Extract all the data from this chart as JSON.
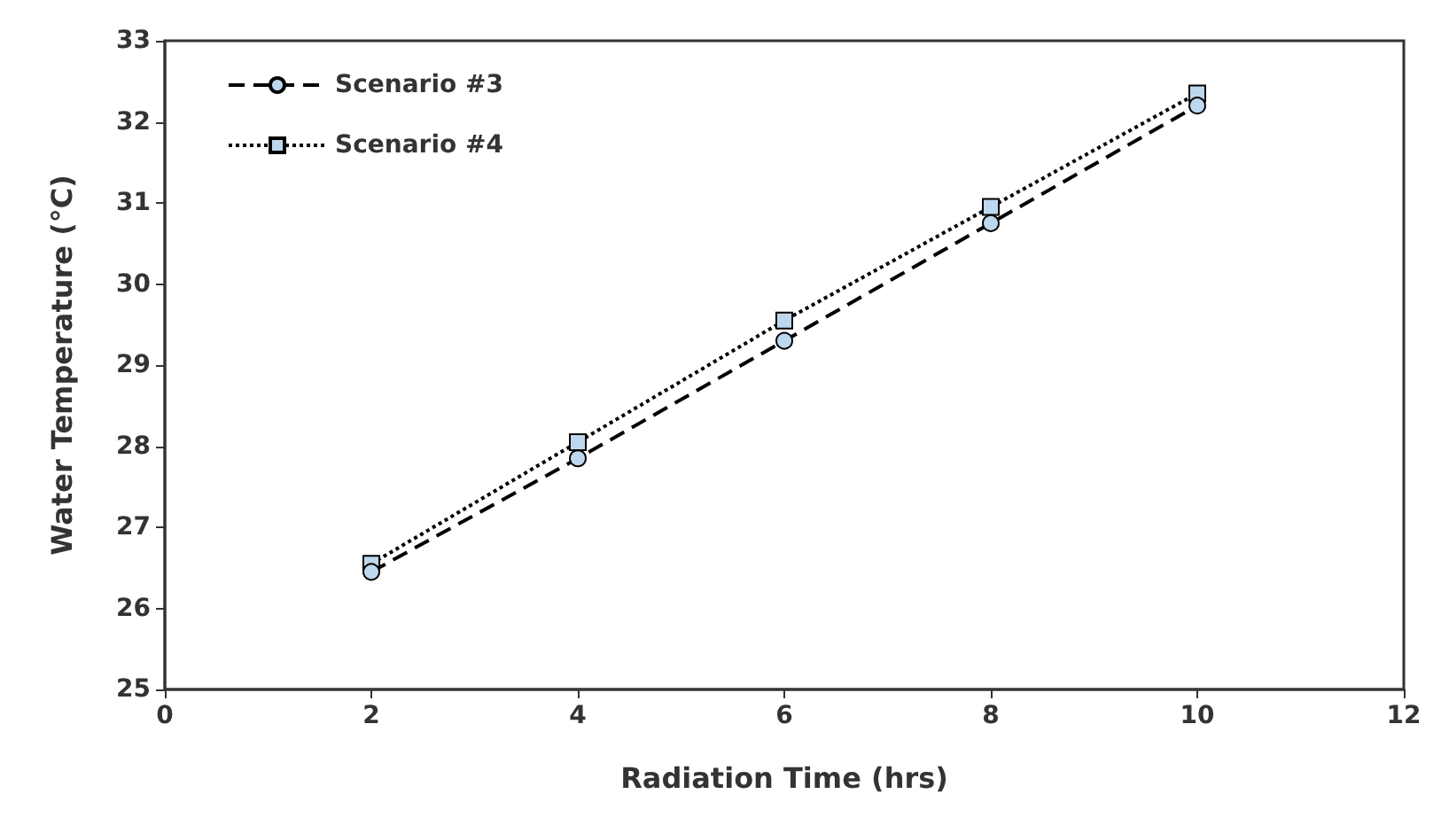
{
  "chart_data": {
    "type": "line",
    "xlabel": "Radiation Time (hrs)",
    "ylabel": "Water Temperature (°C)",
    "x": [
      2,
      4,
      6,
      8,
      10
    ],
    "series": [
      {
        "name": "Scenario #3",
        "color": "#000000",
        "marker": "circle",
        "line_style": "dashed",
        "values": [
          26.45,
          27.85,
          29.3,
          30.75,
          32.2
        ]
      },
      {
        "name": "Scenario #4",
        "color": "#000000",
        "marker": "square",
        "line_style": "dotted",
        "values": [
          26.55,
          28.05,
          29.55,
          30.95,
          32.35
        ]
      }
    ],
    "xlim": [
      0,
      12
    ],
    "xticks": [
      0,
      2,
      4,
      6,
      8,
      10,
      12
    ],
    "ylim": [
      25,
      33
    ],
    "yticks": [
      25,
      26,
      27,
      28,
      29,
      30,
      31,
      32,
      33
    ],
    "grid": false,
    "legend": "top left"
  }
}
